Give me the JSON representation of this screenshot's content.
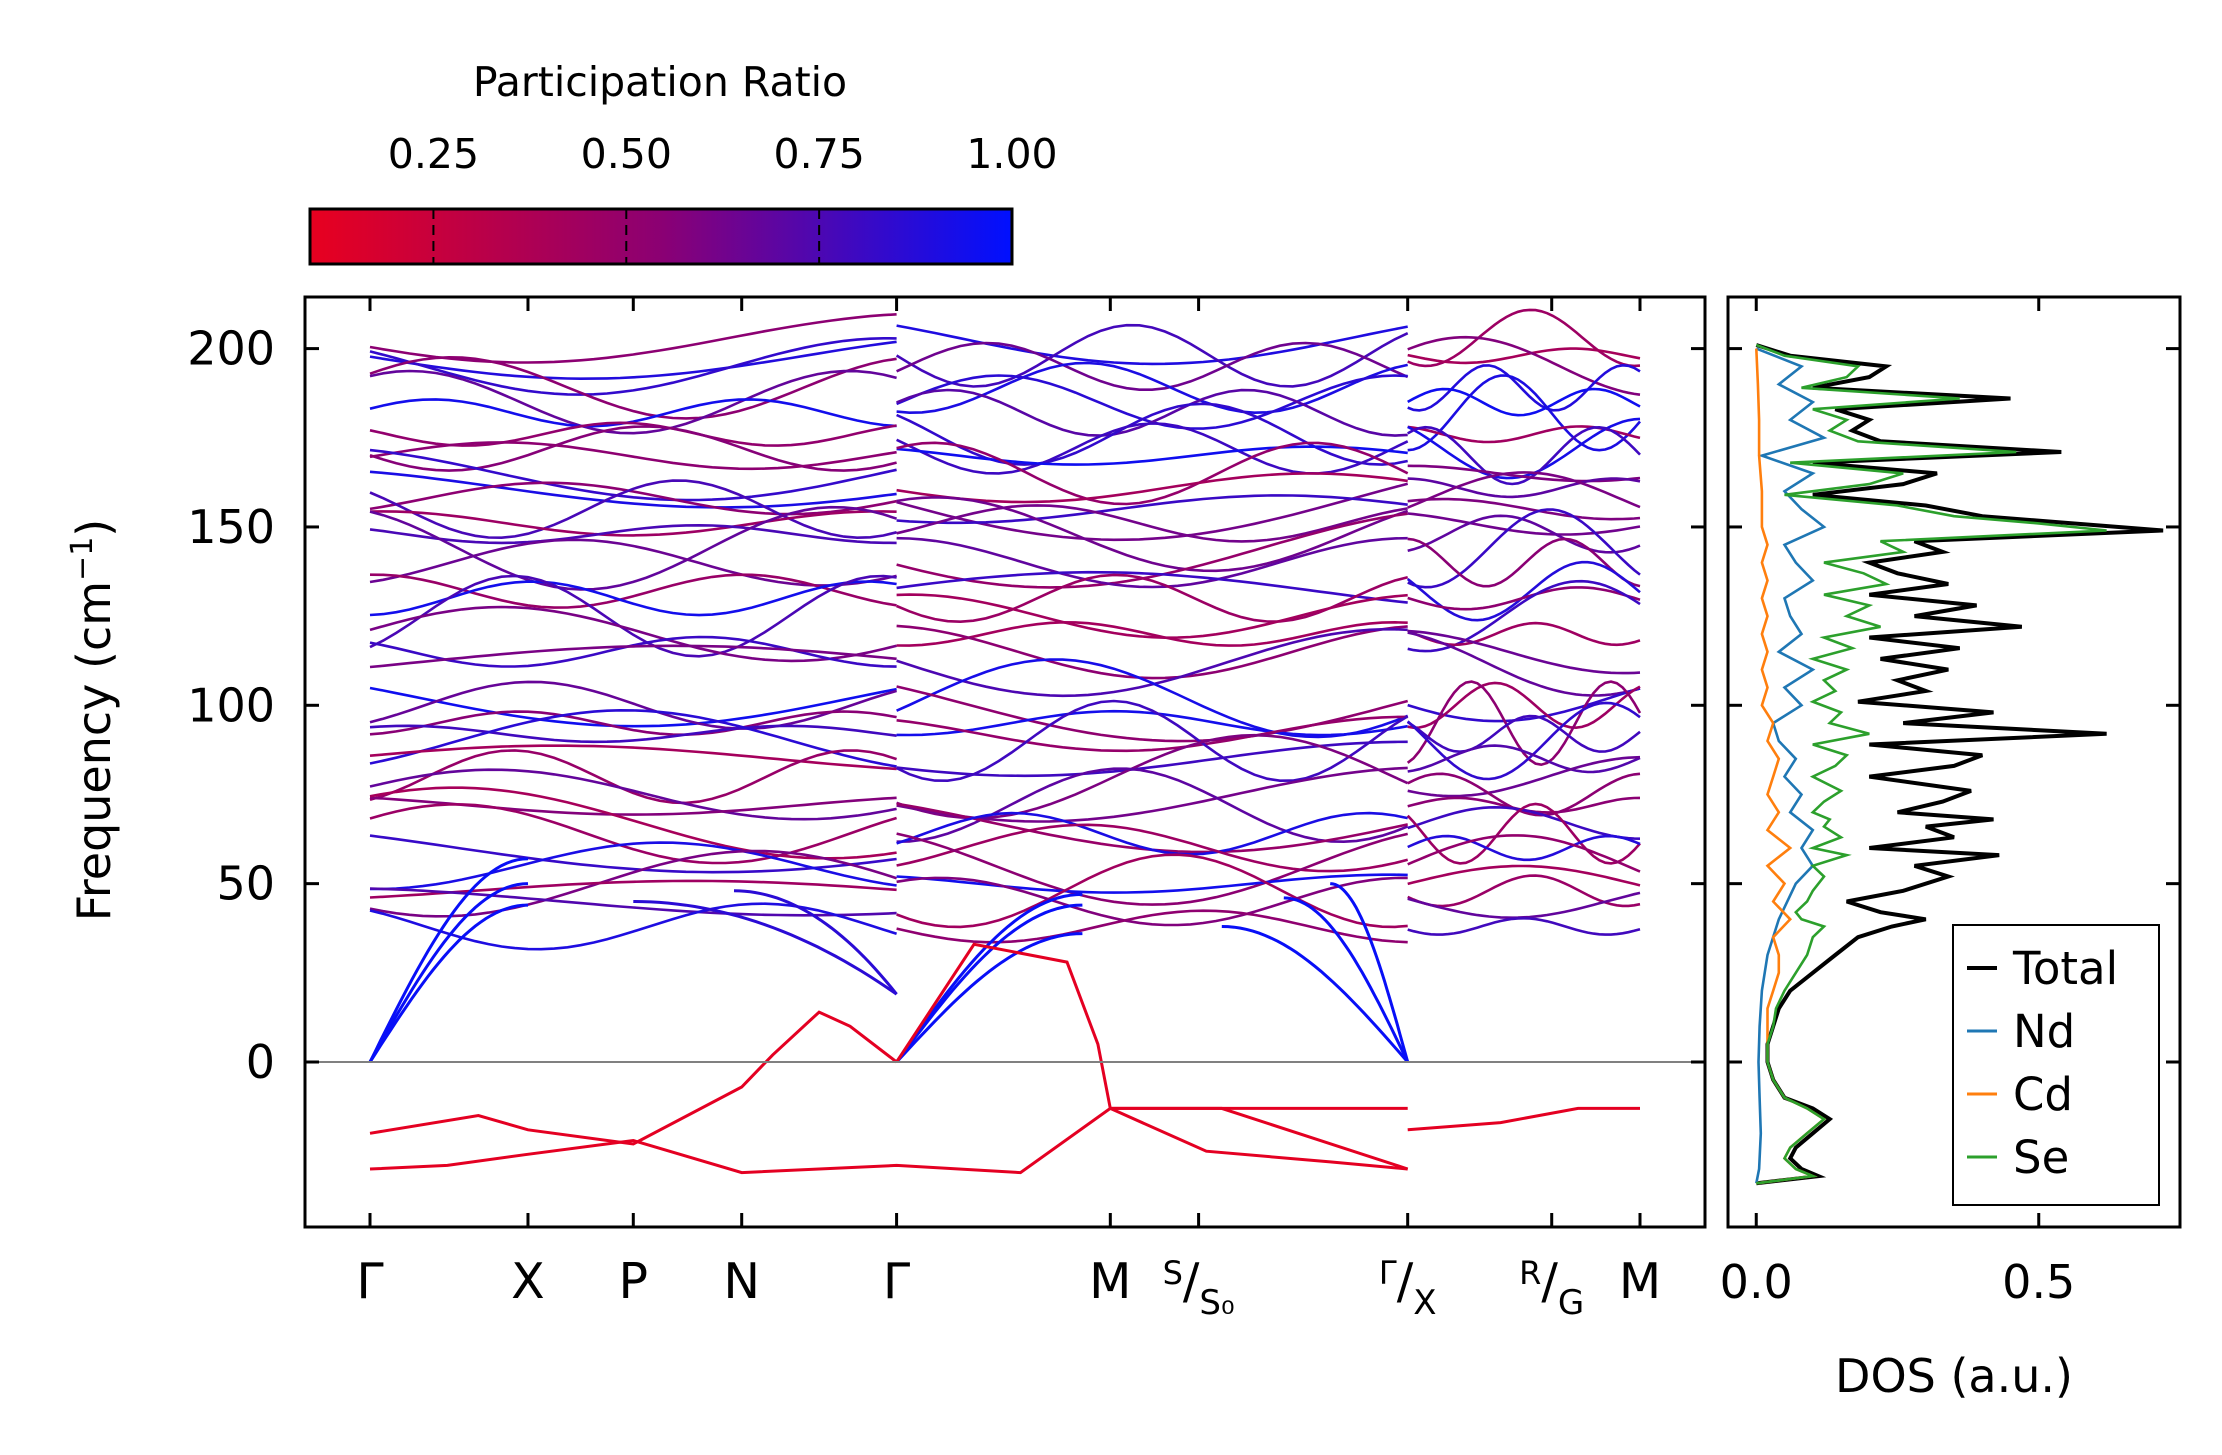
{
  "chart_data": [
    {
      "type": "line",
      "title": "",
      "xlabel": "",
      "ylabel": "Frequency (cm⁻¹)",
      "ylabel_text": "Frequency (cm",
      "ylabel_unit": "−1",
      "ylabel_close": ")",
      "ylim": [
        -47,
        215
      ],
      "yticks": [
        0,
        50,
        100,
        150,
        200
      ],
      "ytick_labels": [
        "0",
        "50",
        "100",
        "150",
        "200"
      ],
      "segments": [
        {
          "x0": 0.0,
          "x1": 3.4,
          "points": [
            "Γ",
            "X",
            "P",
            "N",
            "Γ"
          ]
        },
        {
          "x0": 3.4,
          "x1": 6.7,
          "points": [
            "Γ",
            "M",
            "S",
            "Γ"
          ]
        },
        {
          "x0": 6.7,
          "x1": 8.2,
          "points": [
            "X",
            "R",
            "M"
          ]
        }
      ],
      "high_symmetry_points": [
        {
          "x": 0.0,
          "label": "Γ"
        },
        {
          "x": 1.02,
          "label": "X"
        },
        {
          "x": 1.7,
          "label": "P"
        },
        {
          "x": 2.4,
          "label": "N"
        },
        {
          "x": 3.4,
          "label": "Γ"
        },
        {
          "x": 4.78,
          "label": "M"
        },
        {
          "x": 5.35,
          "label": "S",
          "sub": "S₀"
        },
        {
          "x": 6.7,
          "label": "Γ",
          "sub": "X"
        },
        {
          "x": 7.63,
          "label": "R",
          "sub": "G"
        },
        {
          "x": 8.2,
          "label": "M"
        }
      ],
      "bands": {
        "imaginary_soft_modes_cm1": [
          -30,
          -20,
          -13,
          14,
          33
        ],
        "acoustic_max_cm1": 57,
        "optical_mode_range_cm1": [
          19,
          203
        ],
        "representative_mode_frequencies_cm1": [
          203,
          198,
          195,
          189,
          185,
          182,
          176,
          172,
          170,
          165,
          161,
          158,
          155,
          151,
          148,
          144,
          140,
          132,
          130,
          125,
          120,
          115,
          112,
          102,
          100,
          95,
          92,
          90,
          85,
          80,
          75,
          72,
          67,
          64,
          60,
          55,
          50,
          48,
          45,
          38
        ]
      },
      "colormap": {
        "title": "Participation Ratio",
        "range": [
          0.09,
          1.0
        ],
        "ticks": [
          0.25,
          0.5,
          0.75,
          1.0
        ],
        "tick_labels": [
          "0.25",
          "0.50",
          "0.75",
          "1.00"
        ],
        "color_low": "#e8001f",
        "color_mid": "#8b0073",
        "color_high": "#0010ff"
      },
      "zero_line_color": "#808080"
    },
    {
      "type": "line",
      "title": "",
      "xlabel": "DOS (a.u.)",
      "ylabel": "",
      "xlim": [
        -0.05,
        0.75
      ],
      "xticks": [
        0.0,
        0.5
      ],
      "xtick_labels": [
        "0.0",
        "0.5"
      ],
      "ylim": [
        -47,
        215
      ],
      "series": [
        {
          "name": "Total",
          "color": "#000000",
          "freq": [
            -34,
            -32,
            -30,
            -27,
            -24,
            -20,
            -16,
            -13,
            -10,
            -5,
            0,
            5,
            10,
            15,
            20,
            25,
            30,
            35,
            38,
            40,
            42,
            45,
            48,
            52,
            55,
            58,
            60,
            63,
            66,
            68,
            70,
            73,
            76,
            80,
            83,
            86,
            89,
            92,
            95,
            98,
            101,
            104,
            107,
            110,
            113,
            116,
            119,
            122,
            125,
            128,
            131,
            134,
            137,
            140,
            143,
            146,
            149,
            151,
            153,
            156,
            159,
            162,
            165,
            168,
            171,
            174,
            177,
            180,
            183,
            186,
            189,
            192,
            195,
            198,
            201
          ],
          "dos": [
            0.0,
            0.11,
            0.08,
            0.06,
            0.07,
            0.1,
            0.13,
            0.1,
            0.05,
            0.03,
            0.02,
            0.02,
            0.03,
            0.04,
            0.06,
            0.1,
            0.14,
            0.18,
            0.24,
            0.3,
            0.22,
            0.16,
            0.26,
            0.34,
            0.28,
            0.43,
            0.2,
            0.35,
            0.3,
            0.42,
            0.25,
            0.33,
            0.38,
            0.2,
            0.35,
            0.4,
            0.2,
            0.62,
            0.26,
            0.42,
            0.18,
            0.3,
            0.25,
            0.34,
            0.22,
            0.36,
            0.2,
            0.47,
            0.28,
            0.39,
            0.2,
            0.34,
            0.25,
            0.2,
            0.33,
            0.28,
            0.72,
            0.56,
            0.4,
            0.3,
            0.1,
            0.26,
            0.32,
            0.1,
            0.54,
            0.22,
            0.17,
            0.2,
            0.14,
            0.45,
            0.1,
            0.2,
            0.23,
            0.06,
            0.0
          ]
        },
        {
          "name": "Nd",
          "color": "#1f77b4",
          "freq": [
            -34,
            -30,
            -20,
            -10,
            0,
            10,
            20,
            30,
            40,
            50,
            55,
            60,
            65,
            70,
            75,
            80,
            85,
            90,
            95,
            100,
            105,
            110,
            115,
            120,
            125,
            130,
            135,
            140,
            145,
            150,
            155,
            160,
            165,
            170,
            175,
            180,
            185,
            190,
            195,
            200
          ],
          "dos": [
            0.0,
            0.005,
            0.008,
            0.006,
            0.004,
            0.006,
            0.01,
            0.02,
            0.04,
            0.07,
            0.1,
            0.08,
            0.1,
            0.06,
            0.08,
            0.05,
            0.07,
            0.04,
            0.03,
            0.08,
            0.05,
            0.1,
            0.04,
            0.08,
            0.06,
            0.05,
            0.1,
            0.07,
            0.05,
            0.12,
            0.08,
            0.05,
            0.1,
            0.01,
            0.12,
            0.06,
            0.1,
            0.04,
            0.08,
            0.0
          ]
        },
        {
          "name": "Cd",
          "color": "#ff7f0e",
          "freq": [
            -34,
            -32,
            -30,
            -27,
            -24,
            -20,
            -16,
            -13,
            -10,
            -5,
            0,
            5,
            10,
            15,
            20,
            25,
            30,
            35,
            40,
            45,
            50,
            55,
            60,
            65,
            70,
            75,
            80,
            85,
            90,
            95,
            100,
            105,
            110,
            115,
            120,
            125,
            130,
            135,
            140,
            145,
            150,
            155,
            160,
            170,
            180,
            190,
            200
          ],
          "dos": [
            0.0,
            0.1,
            0.07,
            0.05,
            0.06,
            0.09,
            0.12,
            0.09,
            0.05,
            0.03,
            0.02,
            0.02,
            0.02,
            0.02,
            0.03,
            0.04,
            0.04,
            0.03,
            0.06,
            0.03,
            0.05,
            0.02,
            0.06,
            0.02,
            0.04,
            0.02,
            0.03,
            0.04,
            0.02,
            0.03,
            0.01,
            0.02,
            0.01,
            0.02,
            0.01,
            0.02,
            0.01,
            0.02,
            0.01,
            0.02,
            0.01,
            0.01,
            0.01,
            0.005,
            0.005,
            0.003,
            0.0
          ]
        },
        {
          "name": "Se",
          "color": "#2ca02c",
          "freq": [
            -34,
            -32,
            -30,
            -27,
            -24,
            -20,
            -16,
            -13,
            -10,
            -5,
            0,
            5,
            10,
            15,
            20,
            25,
            30,
            35,
            38,
            40,
            42,
            45,
            48,
            52,
            55,
            58,
            60,
            63,
            66,
            68,
            70,
            73,
            76,
            80,
            83,
            86,
            89,
            92,
            95,
            98,
            101,
            104,
            107,
            110,
            113,
            116,
            119,
            122,
            125,
            128,
            131,
            134,
            137,
            140,
            143,
            146,
            149,
            151,
            153,
            156,
            159,
            162,
            165,
            168,
            171,
            174,
            177,
            180,
            183,
            186,
            189,
            192,
            195,
            198,
            201
          ],
          "dos": [
            0.0,
            0.1,
            0.07,
            0.05,
            0.06,
            0.09,
            0.12,
            0.09,
            0.05,
            0.03,
            0.02,
            0.02,
            0.03,
            0.035,
            0.05,
            0.07,
            0.09,
            0.1,
            0.12,
            0.08,
            0.07,
            0.09,
            0.1,
            0.12,
            0.1,
            0.16,
            0.1,
            0.15,
            0.12,
            0.13,
            0.1,
            0.12,
            0.15,
            0.1,
            0.14,
            0.16,
            0.1,
            0.2,
            0.13,
            0.15,
            0.1,
            0.14,
            0.12,
            0.16,
            0.1,
            0.17,
            0.12,
            0.22,
            0.16,
            0.2,
            0.12,
            0.23,
            0.19,
            0.12,
            0.26,
            0.22,
            0.62,
            0.5,
            0.35,
            0.25,
            0.05,
            0.2,
            0.26,
            0.06,
            0.46,
            0.18,
            0.13,
            0.16,
            0.1,
            0.36,
            0.08,
            0.16,
            0.18,
            0.05,
            0.0
          ]
        }
      ]
    }
  ]
}
